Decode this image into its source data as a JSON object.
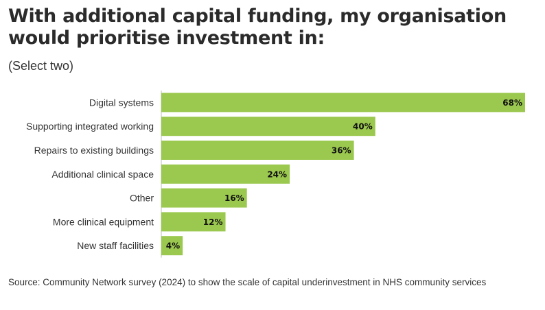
{
  "title": "With additional capital funding, my organisation would prioritise investment in:",
  "subtitle": "(Select two)",
  "source": "Source: Community Network survey (2024) to show the scale of capital underinvestment in NHS community services",
  "colors": {
    "bar": "#9bc84e",
    "axis": "#bdbdbd"
  },
  "chart_data": {
    "type": "bar",
    "orientation": "horizontal",
    "categories": [
      "Digital systems",
      "Supporting integrated working",
      "Repairs to existing buildings",
      "Additional clinical space",
      "Other",
      "More clinical equipment",
      "New staff facilities"
    ],
    "values": [
      68,
      40,
      36,
      24,
      16,
      12,
      4
    ],
    "value_labels": [
      "68%",
      "40%",
      "36%",
      "24%",
      "16%",
      "12%",
      "4%"
    ],
    "unit": "%",
    "xlim": [
      0,
      68
    ],
    "grid": false,
    "legend": "none"
  }
}
